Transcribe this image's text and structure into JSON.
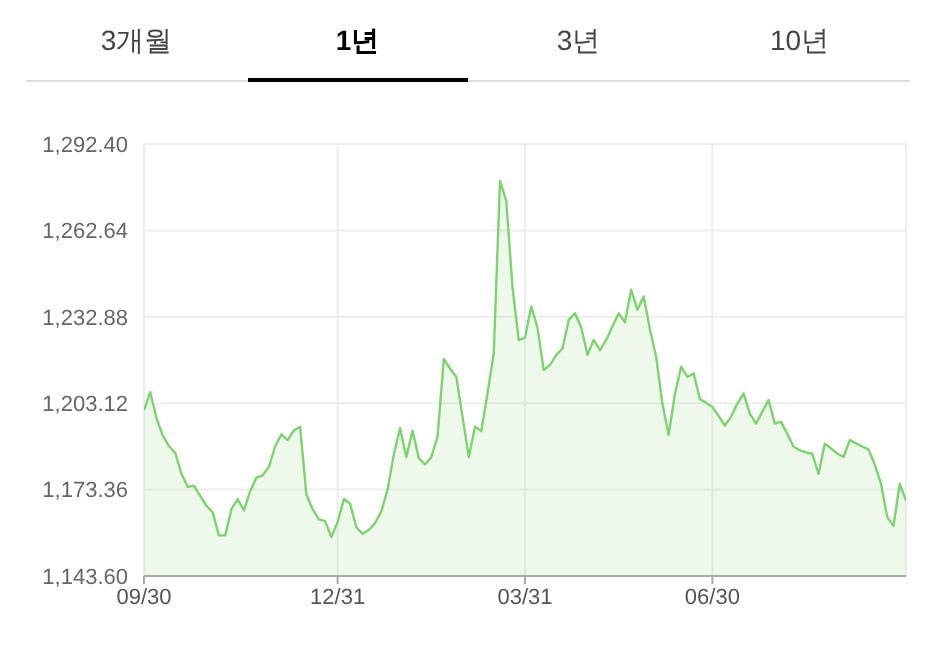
{
  "chart_data": {
    "type": "area",
    "annotations": [
      "3개월",
      "1년",
      "3년",
      "10년"
    ],
    "categories": [
      "09/30",
      null,
      null,
      null,
      null,
      null,
      null,
      null,
      null,
      null,
      null,
      null,
      null,
      null,
      null,
      null,
      null,
      null,
      null,
      null,
      null,
      null,
      null,
      null,
      null,
      null,
      null,
      null,
      null,
      null,
      null,
      "12/31",
      null,
      null,
      null,
      null,
      null,
      null,
      null,
      null,
      null,
      null,
      null,
      null,
      null,
      null,
      null,
      null,
      null,
      null,
      null,
      null,
      null,
      null,
      null,
      null,
      null,
      null,
      null,
      null,
      null,
      "03/31",
      null,
      null,
      null,
      null,
      null,
      null,
      null,
      null,
      null,
      null,
      null,
      null,
      null,
      null,
      null,
      null,
      null,
      null,
      null,
      null,
      null,
      null,
      null,
      null,
      null,
      null,
      null,
      null,
      null,
      "06/30",
      null,
      null,
      null,
      null,
      null,
      null,
      null,
      null,
      null,
      null,
      null,
      null,
      null,
      null,
      null,
      null,
      null,
      null,
      null,
      null,
      null,
      null,
      null,
      null,
      null,
      null,
      null,
      null,
      null,
      null,
      null
    ],
    "series": [
      {
        "color": "#7dd36f",
        "values": [
          1200.7,
          1206.9,
          1198.0,
          1192,
          1188.3,
          1186,
          1178.8,
          1174.3,
          1174.7,
          1171.2,
          1167.8,
          1165.5,
          1157.6,
          1157.6,
          1166.6,
          1170.1,
          1166.2,
          1172.8,
          1177.5,
          1178.3,
          1181.2,
          1188.3,
          1192.4,
          1190.4,
          1193.8,
          1195,
          1171.6,
          1166.6,
          1163.1,
          1162.5,
          1157,
          1162.2,
          1170.1,
          1168.5,
          1160.4,
          1158.1,
          1159.5,
          1161.8,
          1165.9,
          1173.4,
          1185.5,
          1194.5,
          1184.6,
          1193.6,
          1184.2,
          1182,
          1184.6,
          1191.5,
          1218.4,
          1215,
          1212.2,
          1198.4,
          1184.6,
          1195,
          1193.5,
          1206.5,
          1220.3,
          1279.7,
          1272.8,
          1243,
          1224.8,
          1225.7,
          1236.4,
          1229.1,
          1214.5,
          1216.3,
          1219.7,
          1222,
          1231.8,
          1234.1,
          1229.3,
          1219.8,
          1224.9,
          1221.4,
          1224.9,
          1229.5,
          1234.1,
          1231,
          1242.2,
          1235.3,
          1239.9,
          1228.6,
          1219.1,
          1203,
          1192.2,
          1206.3,
          1215.7,
          1212.2,
          1213.4,
          1204.6,
          1203.3,
          1201.9,
          1198.7,
          1195.4,
          1198.5,
          1203,
          1206.5,
          1199.5,
          1196.1,
          1200.2,
          1204.2,
          1196.1,
          1196.7,
          1192.5,
          1188.1,
          1186.9,
          1186.2,
          1185.7,
          1178.8,
          1189.2,
          1187.5,
          1185.8,
          1184.6,
          1190.4,
          1189.3,
          1188.2,
          1187.2,
          1182,
          1175.4,
          1163.9,
          1160.9,
          1175.4,
          1169.6
        ]
      }
    ],
    "ylim": [
      1143.6,
      1292.4
    ],
    "yticks": [
      {
        "value": 1143.6,
        "label": "1,143.60"
      },
      {
        "value": 1173.36,
        "label": "1,173.36"
      },
      {
        "value": 1203.12,
        "label": "1,203.12"
      },
      {
        "value": 1232.88,
        "label": "1,232.88"
      },
      {
        "value": 1262.64,
        "label": "1,262.64"
      },
      {
        "value": 1292.4,
        "label": "1,292.40"
      }
    ],
    "grid": true
  }
}
